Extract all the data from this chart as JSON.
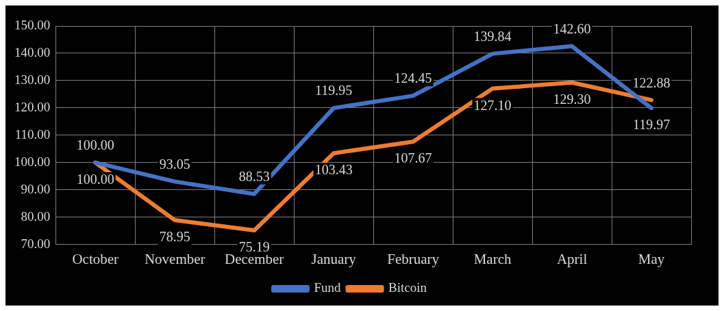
{
  "chart_data": {
    "type": "line",
    "categories": [
      "October",
      "November",
      "December",
      "January",
      "February",
      "March",
      "April",
      "May"
    ],
    "series": [
      {
        "name": "Fund",
        "color": "#4472c4",
        "values": [
          100.0,
          93.05,
          88.53,
          119.95,
          124.45,
          139.84,
          142.6,
          119.97
        ],
        "value_labels": [
          "100.00",
          "93.05",
          "88.53",
          "119.95",
          "124.45",
          "139.84",
          "142.60",
          "119.97"
        ]
      },
      {
        "name": "Bitcoin",
        "color": "#ed7d31",
        "values": [
          100.0,
          78.95,
          75.19,
          103.43,
          107.67,
          127.1,
          129.3,
          122.88
        ],
        "value_labels": [
          "100.00",
          "78.95",
          "75.19",
          "103.43",
          "107.67",
          "127.10",
          "129.30",
          "122.88"
        ]
      }
    ],
    "ylim": [
      70,
      150
    ],
    "yticks": [
      {
        "value": 70,
        "label": "70.00"
      },
      {
        "value": 80,
        "label": "80.00"
      },
      {
        "value": 90,
        "label": "90.00"
      },
      {
        "value": 100,
        "label": "100.00"
      },
      {
        "value": 110,
        "label": "110.00"
      },
      {
        "value": 120,
        "label": "120.00"
      },
      {
        "value": 130,
        "label": "130.00"
      },
      {
        "value": 140,
        "label": "140.00"
      },
      {
        "value": 150,
        "label": "150.00"
      }
    ],
    "grid": true,
    "legend": "bottom",
    "marker": "none",
    "line_style": "solid"
  }
}
